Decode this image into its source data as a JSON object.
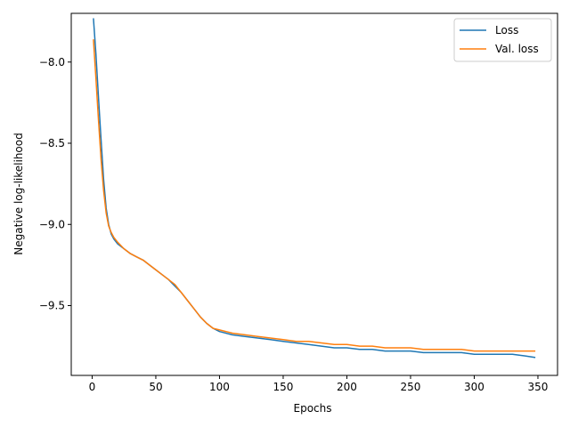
{
  "chart_data": {
    "type": "line",
    "title": "",
    "xlabel": "Epochs",
    "ylabel": "Negative log-likelihood",
    "xlim": [
      -16.4,
      365.4
    ],
    "ylim": [
      -9.93,
      -7.7
    ],
    "xticks": [
      0,
      50,
      100,
      150,
      200,
      250,
      300,
      350
    ],
    "yticks": [
      -8.0,
      -8.5,
      -9.0,
      -9.5
    ],
    "ytick_labels": [
      "−8.0",
      "−8.5",
      "−9.0",
      "−9.5"
    ],
    "grid": false,
    "legend_position": "top-right",
    "series": [
      {
        "name": "Loss",
        "color": "#1f77b4",
        "points": [
          [
            1,
            -7.73
          ],
          [
            3,
            -7.95
          ],
          [
            5,
            -8.22
          ],
          [
            7,
            -8.48
          ],
          [
            9,
            -8.72
          ],
          [
            11,
            -8.9
          ],
          [
            13,
            -9.0
          ],
          [
            15,
            -9.06
          ],
          [
            17,
            -9.09
          ],
          [
            20,
            -9.12
          ],
          [
            25,
            -9.15
          ],
          [
            30,
            -9.18
          ],
          [
            35,
            -9.2
          ],
          [
            40,
            -9.22
          ],
          [
            45,
            -9.25
          ],
          [
            50,
            -9.28
          ],
          [
            55,
            -9.31
          ],
          [
            60,
            -9.34
          ],
          [
            65,
            -9.38
          ],
          [
            70,
            -9.42
          ],
          [
            75,
            -9.47
          ],
          [
            80,
            -9.52
          ],
          [
            85,
            -9.57
          ],
          [
            90,
            -9.61
          ],
          [
            95,
            -9.64
          ],
          [
            100,
            -9.66
          ],
          [
            110,
            -9.68
          ],
          [
            120,
            -9.69
          ],
          [
            130,
            -9.7
          ],
          [
            140,
            -9.71
          ],
          [
            150,
            -9.72
          ],
          [
            160,
            -9.73
          ],
          [
            170,
            -9.74
          ],
          [
            180,
            -9.75
          ],
          [
            190,
            -9.76
          ],
          [
            200,
            -9.76
          ],
          [
            210,
            -9.77
          ],
          [
            220,
            -9.77
          ],
          [
            230,
            -9.78
          ],
          [
            240,
            -9.78
          ],
          [
            250,
            -9.78
          ],
          [
            260,
            -9.79
          ],
          [
            270,
            -9.79
          ],
          [
            280,
            -9.79
          ],
          [
            290,
            -9.79
          ],
          [
            300,
            -9.8
          ],
          [
            310,
            -9.8
          ],
          [
            320,
            -9.8
          ],
          [
            330,
            -9.8
          ],
          [
            340,
            -9.81
          ],
          [
            348,
            -9.82
          ]
        ]
      },
      {
        "name": "Val. loss",
        "color": "#ff7f0e",
        "points": [
          [
            1,
            -7.86
          ],
          [
            3,
            -8.1
          ],
          [
            5,
            -8.36
          ],
          [
            7,
            -8.6
          ],
          [
            9,
            -8.79
          ],
          [
            11,
            -8.93
          ],
          [
            13,
            -9.01
          ],
          [
            15,
            -9.05
          ],
          [
            17,
            -9.08
          ],
          [
            20,
            -9.11
          ],
          [
            25,
            -9.15
          ],
          [
            30,
            -9.18
          ],
          [
            35,
            -9.2
          ],
          [
            40,
            -9.22
          ],
          [
            45,
            -9.25
          ],
          [
            50,
            -9.28
          ],
          [
            55,
            -9.31
          ],
          [
            60,
            -9.34
          ],
          [
            65,
            -9.37
          ],
          [
            70,
            -9.42
          ],
          [
            75,
            -9.47
          ],
          [
            80,
            -9.52
          ],
          [
            85,
            -9.57
          ],
          [
            90,
            -9.61
          ],
          [
            95,
            -9.64
          ],
          [
            100,
            -9.65
          ],
          [
            110,
            -9.67
          ],
          [
            120,
            -9.68
          ],
          [
            130,
            -9.69
          ],
          [
            140,
            -9.7
          ],
          [
            150,
            -9.71
          ],
          [
            160,
            -9.72
          ],
          [
            170,
            -9.72
          ],
          [
            180,
            -9.73
          ],
          [
            190,
            -9.74
          ],
          [
            200,
            -9.74
          ],
          [
            210,
            -9.75
          ],
          [
            220,
            -9.75
          ],
          [
            230,
            -9.76
          ],
          [
            240,
            -9.76
          ],
          [
            250,
            -9.76
          ],
          [
            260,
            -9.77
          ],
          [
            270,
            -9.77
          ],
          [
            280,
            -9.77
          ],
          [
            290,
            -9.77
          ],
          [
            300,
            -9.78
          ],
          [
            310,
            -9.78
          ],
          [
            320,
            -9.78
          ],
          [
            330,
            -9.78
          ],
          [
            340,
            -9.78
          ],
          [
            348,
            -9.78
          ]
        ]
      }
    ]
  }
}
